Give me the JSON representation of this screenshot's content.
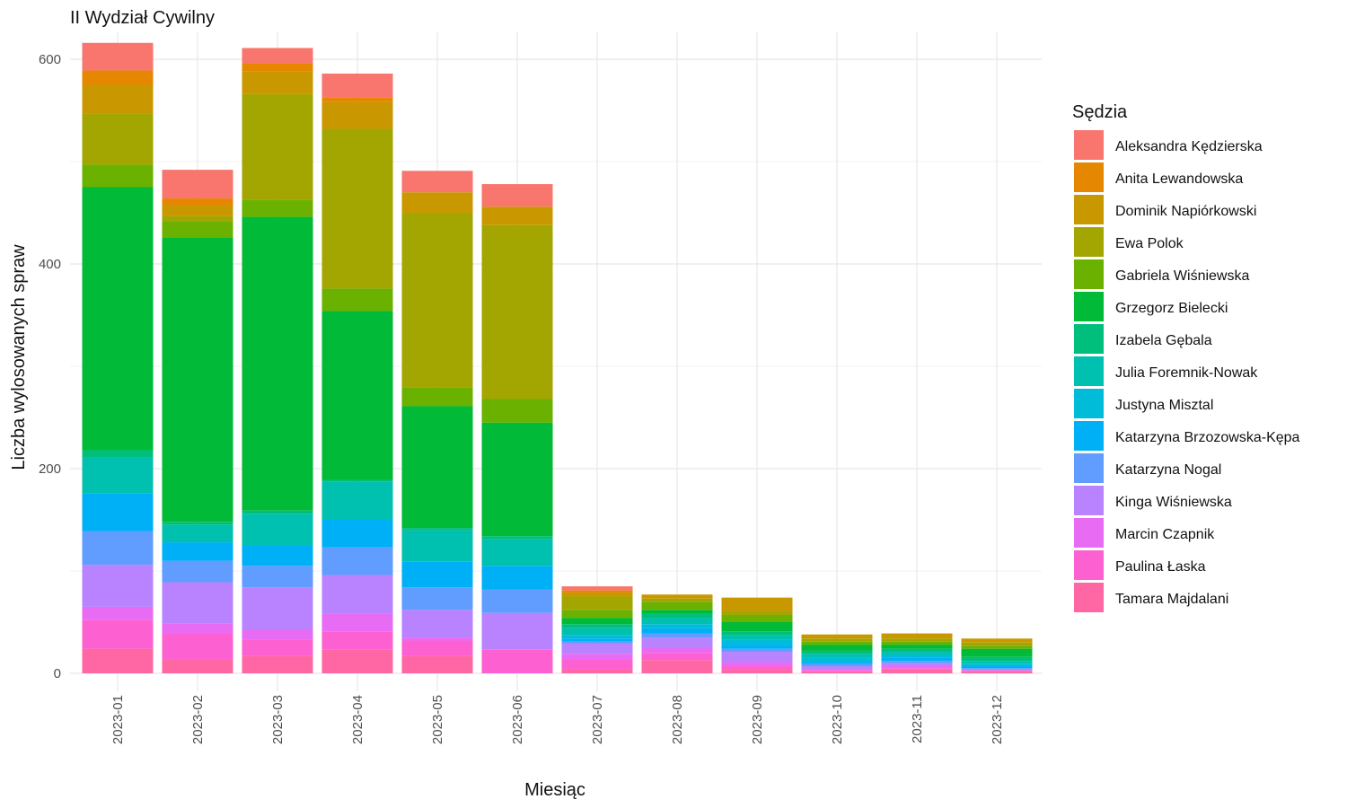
{
  "chart_data": {
    "type": "bar",
    "stacked": true,
    "title": "II Wydział Cywilny",
    "xlabel": "Miesiąc",
    "ylabel": "Liczba wylosowanych spraw",
    "ylim": [
      0,
      620
    ],
    "yticks": [
      0,
      200,
      400,
      600
    ],
    "grid": true,
    "legend": {
      "title": "Sędzia",
      "position": "right"
    },
    "categories": [
      "2023-01",
      "2023-02",
      "2023-03",
      "2023-04",
      "2023-05",
      "2023-06",
      "2023-07",
      "2023-08",
      "2023-09",
      "2023-10",
      "2023-11",
      "2023-12"
    ],
    "series": [
      {
        "name": "Aleksandra Kędzierska",
        "color": "#F8766D",
        "values": [
          27,
          28,
          15,
          23,
          21,
          22,
          4,
          0,
          0,
          0,
          0,
          0
        ]
      },
      {
        "name": "Anita Lewandowska",
        "color": "#E58700",
        "values": [
          14,
          7,
          8,
          5,
          0,
          0,
          2,
          0,
          0,
          0,
          0,
          0
        ]
      },
      {
        "name": "Dominik Napiórkowski",
        "color": "#C99800",
        "values": [
          28,
          10,
          22,
          26,
          20,
          18,
          4,
          4,
          13,
          4,
          5,
          4
        ]
      },
      {
        "name": "Ewa Polok",
        "color": "#A3A500",
        "values": [
          50,
          5,
          103,
          156,
          171,
          170,
          13,
          3,
          4,
          3,
          3,
          3
        ]
      },
      {
        "name": "Gabriela Wiśniewska",
        "color": "#6BB100",
        "values": [
          22,
          16,
          17,
          22,
          18,
          23,
          8,
          8,
          7,
          3,
          3,
          3
        ]
      },
      {
        "name": "Grzegorz Bielecki",
        "color": "#00BA38",
        "values": [
          257,
          278,
          287,
          165,
          119,
          111,
          6,
          4,
          9,
          6,
          4,
          8
        ]
      },
      {
        "name": "Izabela Gębala",
        "color": "#00BF7D",
        "values": [
          7,
          3,
          3,
          2,
          2,
          3,
          4,
          4,
          4,
          3,
          3,
          4
        ]
      },
      {
        "name": "Julia Foremnik-Nowak",
        "color": "#00C0AF",
        "values": [
          35,
          17,
          31,
          37,
          31,
          26,
          7,
          6,
          4,
          4,
          3,
          3
        ]
      },
      {
        "name": "Justyna Misztal",
        "color": "#00BCD8",
        "values": [
          0,
          0,
          0,
          0,
          0,
          0,
          3,
          4,
          5,
          4,
          3,
          2
        ]
      },
      {
        "name": "Katarzyna Brzozowska-Kępa",
        "color": "#00B0F6",
        "values": [
          37,
          18,
          20,
          27,
          25,
          23,
          3,
          5,
          4,
          2,
          3,
          2
        ]
      },
      {
        "name": "Katarzyna Nogal",
        "color": "#619CFF",
        "values": [
          33,
          21,
          21,
          27,
          22,
          23,
          2,
          4,
          3,
          2,
          2,
          1
        ]
      },
      {
        "name": "Kinga Wiśniewska",
        "color": "#B983FF",
        "values": [
          41,
          40,
          41,
          38,
          27,
          36,
          10,
          10,
          10,
          3,
          3,
          1
        ]
      },
      {
        "name": "Marcin Czapnik",
        "color": "#E76BF3",
        "values": [
          13,
          10,
          10,
          17,
          3,
          0,
          5,
          5,
          4,
          1,
          2,
          0
        ]
      },
      {
        "name": "Paulina Łaska",
        "color": "#FD61D1",
        "values": [
          28,
          25,
          16,
          18,
          15,
          23,
          10,
          7,
          3,
          1,
          1,
          1
        ]
      },
      {
        "name": "Tamara Majdalani",
        "color": "#FF67A4",
        "values": [
          24,
          14,
          17,
          23,
          17,
          0,
          4,
          13,
          4,
          2,
          4,
          2
        ]
      }
    ]
  }
}
